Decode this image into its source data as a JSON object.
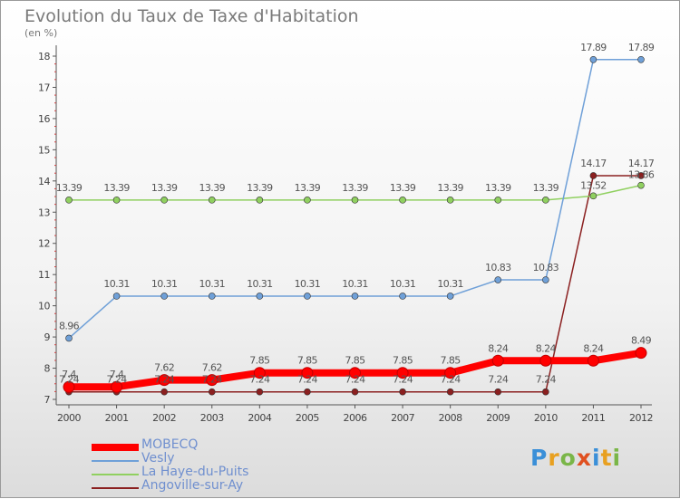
{
  "header": {
    "title": "Evolution du Taux de Taxe d'Habitation",
    "subtitle": "(en %)"
  },
  "logo": {
    "text": "Proxiti",
    "letters": [
      "P",
      "r",
      "o",
      "x",
      "i",
      "t",
      "i"
    ],
    "colors": [
      "#3a8fd8",
      "#e8a020",
      "#7ab648",
      "#e05020",
      "#3a8fd8",
      "#e8a020",
      "#7ab648"
    ]
  },
  "chart_data": {
    "type": "line",
    "title": "Evolution du Taux de Taxe d'Habitation",
    "subtitle": "(en %)",
    "xlabel": "",
    "ylabel": "",
    "x": [
      "2000",
      "2001",
      "2002",
      "2003",
      "2004",
      "2005",
      "2006",
      "2007",
      "2008",
      "2009",
      "2010",
      "2011",
      "2012"
    ],
    "ylim": [
      7,
      18
    ],
    "yticks": [
      "7",
      "8",
      "9",
      "10",
      "11",
      "12",
      "13",
      "14",
      "15",
      "16",
      "17",
      "18"
    ],
    "grid": false,
    "legend_position": "bottom-left",
    "series": [
      {
        "name": "MOBECQ",
        "color": "#ff0000",
        "values": [
          7.4,
          7.4,
          7.62,
          7.62,
          7.85,
          7.85,
          7.85,
          7.85,
          7.85,
          8.24,
          8.24,
          8.24,
          8.49
        ],
        "labels": [
          "7.4",
          "7.4",
          "7.62",
          "7.62",
          "7.85",
          "7.85",
          "7.85",
          "7.85",
          "7.85",
          "8.24",
          "8.24",
          "8.24",
          "8.49"
        ]
      },
      {
        "name": "Vesly",
        "color": "#6fa0d8",
        "values": [
          8.96,
          10.31,
          10.31,
          10.31,
          10.31,
          10.31,
          10.31,
          10.31,
          10.31,
          10.83,
          10.83,
          17.89,
          17.89
        ],
        "labels": [
          "8.96",
          "10.31",
          "10.31",
          "10.31",
          "10.31",
          "10.31",
          "10.31",
          "10.31",
          "10.31",
          "10.83",
          "10.83",
          "17.89",
          "17.89"
        ]
      },
      {
        "name": "La Haye-du-Puits",
        "color": "#90d060",
        "values": [
          13.39,
          13.39,
          13.39,
          13.39,
          13.39,
          13.39,
          13.39,
          13.39,
          13.39,
          13.39,
          13.39,
          13.52,
          13.86
        ],
        "labels": [
          "13.39",
          "13.39",
          "13.39",
          "13.39",
          "13.39",
          "13.39",
          "13.39",
          "13.39",
          "13.39",
          "13.39",
          "13.39",
          "13.52",
          "13.86"
        ]
      },
      {
        "name": "Angoville-sur-Ay",
        "color": "#8b2020",
        "values": [
          7.24,
          7.24,
          7.24,
          7.24,
          7.24,
          7.24,
          7.24,
          7.24,
          7.24,
          7.24,
          7.24,
          14.17,
          14.17
        ],
        "labels": [
          "7.24",
          "7.24",
          "7.24",
          "7.24",
          "7.24",
          "7.24",
          "7.24",
          "7.24",
          "7.24",
          "7.24",
          "7.24",
          "14.17",
          "14.17"
        ]
      }
    ]
  }
}
